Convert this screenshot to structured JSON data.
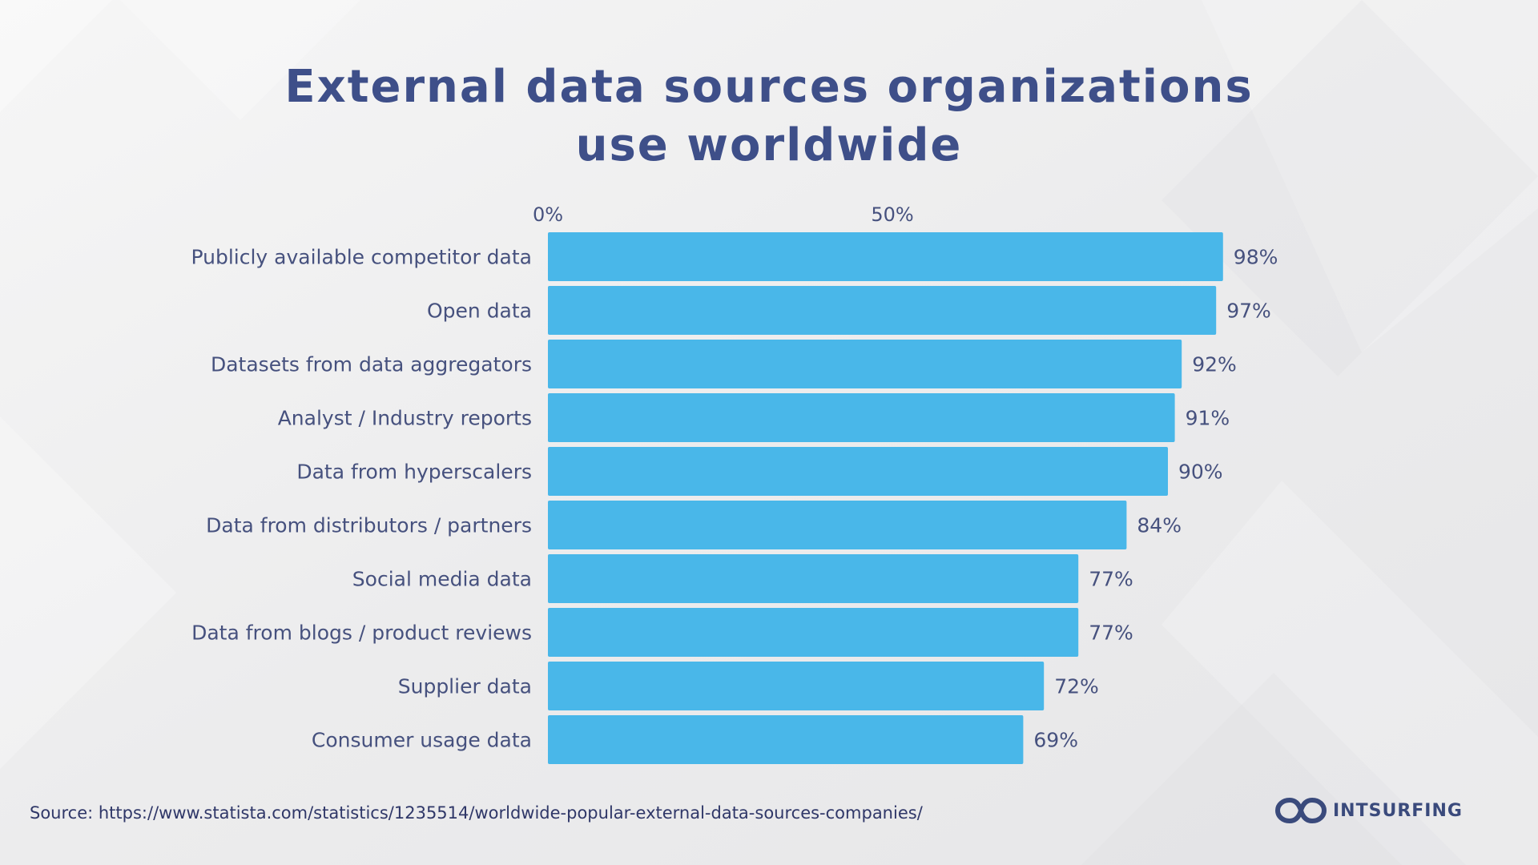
{
  "chart_data": {
    "type": "bar",
    "orientation": "horizontal",
    "title": "External data sources organizations use worldwide",
    "title_lines": [
      "External data sources organizations",
      "use worldwide"
    ],
    "categories": [
      "Publicly available competitor data",
      "Open data",
      "Datasets from data aggregators",
      "Analyst / Industry reports",
      "Data from hyperscalers",
      "Data from distributors / partners",
      "Social media data",
      "Data from blogs / product reviews",
      "Supplier data",
      "Consumer usage data"
    ],
    "values": [
      98,
      97,
      92,
      91,
      90,
      84,
      77,
      77,
      72,
      69
    ],
    "value_labels": [
      "98%",
      "97%",
      "92%",
      "91%",
      "90%",
      "84%",
      "77%",
      "77%",
      "72%",
      "69%"
    ],
    "x_ticks": [
      0,
      50
    ],
    "x_tick_labels": [
      "0%",
      "50%"
    ],
    "xlim": [
      0,
      100
    ],
    "axis_position": "top",
    "grid": false,
    "legend": "none",
    "bar_color": "#49b7e9",
    "text_color": "#46517e",
    "title_color": "#3e4f89"
  },
  "footer": {
    "source": "Source: https://www.statista.com/statistics/1235514/worldwide-popular-external-data-sources-companies/",
    "logo_text": "INTSURFING",
    "logo_icon": "intsurfing-logo-icon",
    "logo_color": "#3a4a7c"
  }
}
